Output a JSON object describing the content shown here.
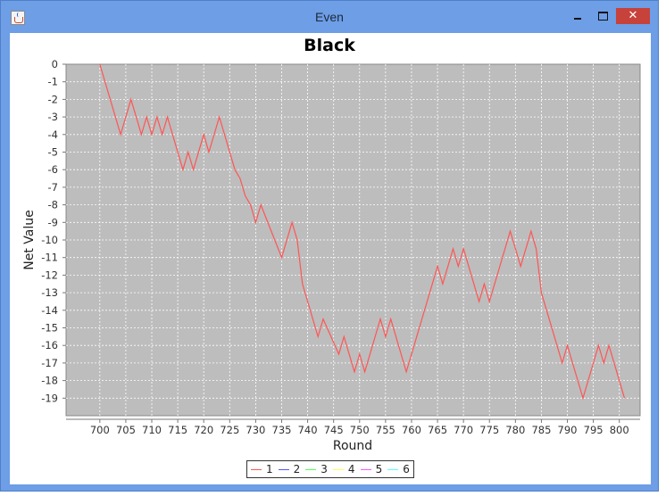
{
  "window": {
    "title": "Even"
  },
  "chart_data": {
    "type": "line",
    "title": "Black",
    "xlabel": "Round",
    "ylabel": "Net Value",
    "xlim": [
      693.5,
      804
    ],
    "ylim": [
      -20,
      0
    ],
    "x_ticks": [
      700,
      705,
      710,
      715,
      720,
      725,
      730,
      735,
      740,
      745,
      750,
      755,
      760,
      765,
      770,
      775,
      780,
      785,
      790,
      795,
      800
    ],
    "y_ticks": [
      0,
      -1,
      -2,
      -3,
      -4,
      -5,
      -6,
      -7,
      -8,
      -9,
      -10,
      -11,
      -12,
      -13,
      -14,
      -15,
      -16,
      -17,
      -18,
      -19
    ],
    "grid": true,
    "legend_position": "bottom",
    "series": [
      {
        "name": "1",
        "color": "#ff5555",
        "points": [
          [
            700,
            0
          ],
          [
            704,
            -4
          ],
          [
            706,
            -2
          ],
          [
            708,
            -4
          ],
          [
            709,
            -3
          ],
          [
            710,
            -4
          ],
          [
            711,
            -3
          ],
          [
            712,
            -4
          ],
          [
            713,
            -3
          ],
          [
            716,
            -6
          ],
          [
            717,
            -5
          ],
          [
            718,
            -6
          ],
          [
            720,
            -4
          ],
          [
            721,
            -5
          ],
          [
            723,
            -3
          ],
          [
            726,
            -6
          ],
          [
            727,
            -6.5
          ],
          [
            728,
            -7.5
          ],
          [
            729,
            -8
          ],
          [
            730,
            -9
          ],
          [
            731,
            -8
          ],
          [
            735,
            -11
          ],
          [
            737,
            -9
          ],
          [
            738,
            -10
          ],
          [
            739,
            -12.5
          ],
          [
            742,
            -15.5
          ],
          [
            743,
            -14.5
          ],
          [
            746,
            -16.5
          ],
          [
            747,
            -15.5
          ],
          [
            749,
            -17.5
          ],
          [
            750,
            -16.5
          ],
          [
            751,
            -17.5
          ],
          [
            754,
            -14.5
          ],
          [
            755,
            -15.5
          ],
          [
            756,
            -14.5
          ],
          [
            759,
            -17.5
          ],
          [
            765,
            -11.5
          ],
          [
            766,
            -12.5
          ],
          [
            768,
            -10.5
          ],
          [
            769,
            -11.5
          ],
          [
            770,
            -10.5
          ],
          [
            773,
            -13.5
          ],
          [
            774,
            -12.5
          ],
          [
            775,
            -13.5
          ],
          [
            779,
            -9.5
          ],
          [
            781,
            -11.5
          ],
          [
            782,
            -10.5
          ],
          [
            783,
            -9.5
          ],
          [
            784,
            -10.5
          ],
          [
            785,
            -13
          ],
          [
            788,
            -16
          ],
          [
            789,
            -17
          ],
          [
            790,
            -16
          ],
          [
            793,
            -19
          ],
          [
            796,
            -16
          ],
          [
            797,
            -17
          ],
          [
            798,
            -16
          ],
          [
            801,
            -19
          ]
        ]
      },
      {
        "name": "2",
        "color": "#5555ff",
        "points": []
      },
      {
        "name": "3",
        "color": "#55ff55",
        "points": []
      },
      {
        "name": "4",
        "color": "#ffff55",
        "points": []
      },
      {
        "name": "5",
        "color": "#ff55ff",
        "points": []
      },
      {
        "name": "6",
        "color": "#55ffff",
        "points": []
      }
    ]
  }
}
